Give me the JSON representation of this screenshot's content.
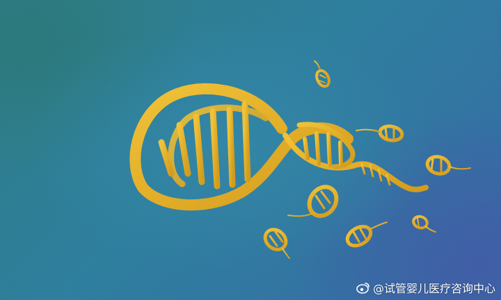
{
  "image": {
    "subject": "dna-helix-with-sperm-shaped-dna-fragments",
    "colors": {
      "background_teal": "#2a7d84",
      "background_blue": "#3367a8",
      "helix_gold": "#e8b62e",
      "helix_shadow": "#b98a1c"
    }
  },
  "watermark": {
    "icon": "weibo-icon",
    "text": "@试管婴儿医疗咨询中心"
  }
}
